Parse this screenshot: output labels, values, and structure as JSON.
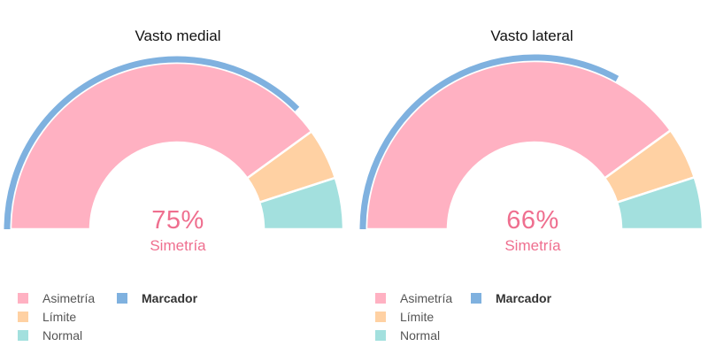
{
  "colors": {
    "asimetria": "#ffb1c2",
    "limite": "#ffd1a3",
    "normal": "#a3e0de",
    "marcador": "#7fb1df",
    "text_accent": "#ef6f8f"
  },
  "chart_data": [
    {
      "type": "gauge",
      "title": "Vasto medial",
      "center_value": "75%",
      "center_label": "Simetría",
      "segments": [
        {
          "name": "Asimetría",
          "value": 80
        },
        {
          "name": "Límite",
          "value": 10
        },
        {
          "name": "Normal",
          "value": 10
        }
      ],
      "marcador": 75,
      "range": [
        0,
        100
      ],
      "legend": [
        "Asimetría",
        "Límite",
        "Normal",
        "Marcador"
      ],
      "legend_position": "bottom-left"
    },
    {
      "type": "gauge",
      "title": "Vasto lateral",
      "center_value": "66%",
      "center_label": "Simetría",
      "segments": [
        {
          "name": "Asimetría",
          "value": 80
        },
        {
          "name": "Límite",
          "value": 10
        },
        {
          "name": "Normal",
          "value": 10
        }
      ],
      "marcador": 66,
      "range": [
        0,
        100
      ],
      "legend": [
        "Asimetría",
        "Límite",
        "Normal",
        "Marcador"
      ],
      "legend_position": "bottom-left"
    }
  ]
}
